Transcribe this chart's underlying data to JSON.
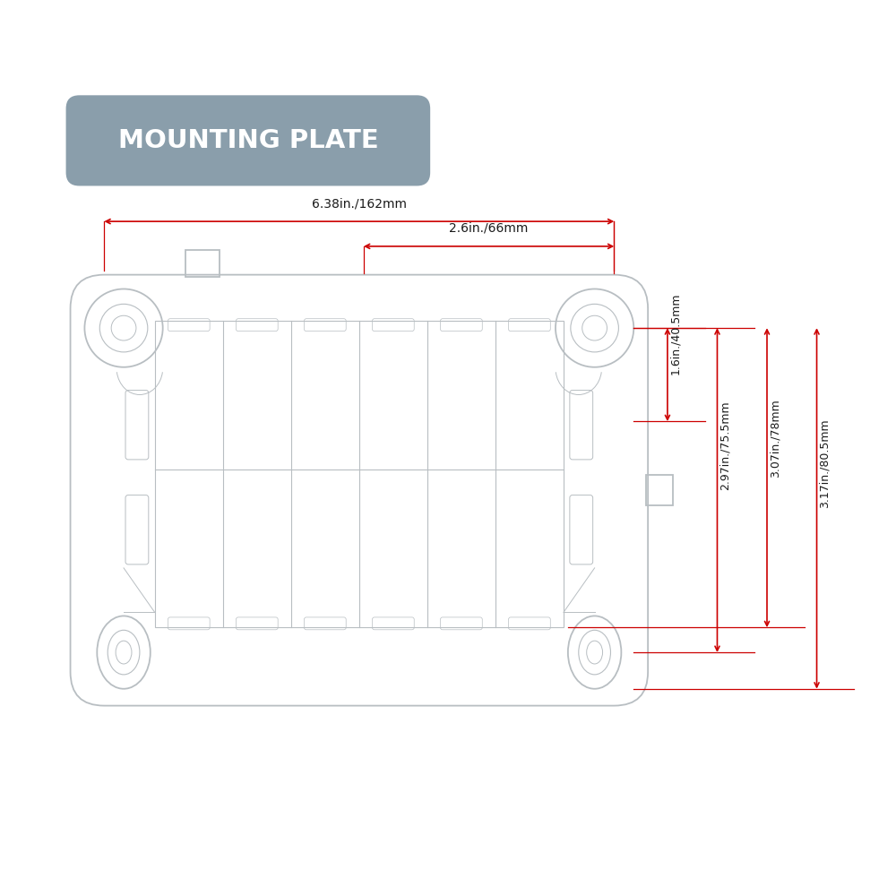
{
  "title": "MOUNTING PLATE",
  "title_bg_color": "#8a9eab",
  "title_text_color": "#ffffff",
  "plate_line_color": "#b8bec2",
  "dim_color": "#cc0000",
  "bg_color": "#ffffff",
  "dim_top_wide_label": "6.38in./162mm",
  "dim_top_narrow_label": "2.6in./66mm",
  "dim_right_1_label": "1.6in./40.5mm",
  "dim_right_2_label": "2.97in./75.5mm",
  "dim_right_3_label": "3.07in./78mm",
  "dim_right_4_label": "3.17in./80.5mm"
}
